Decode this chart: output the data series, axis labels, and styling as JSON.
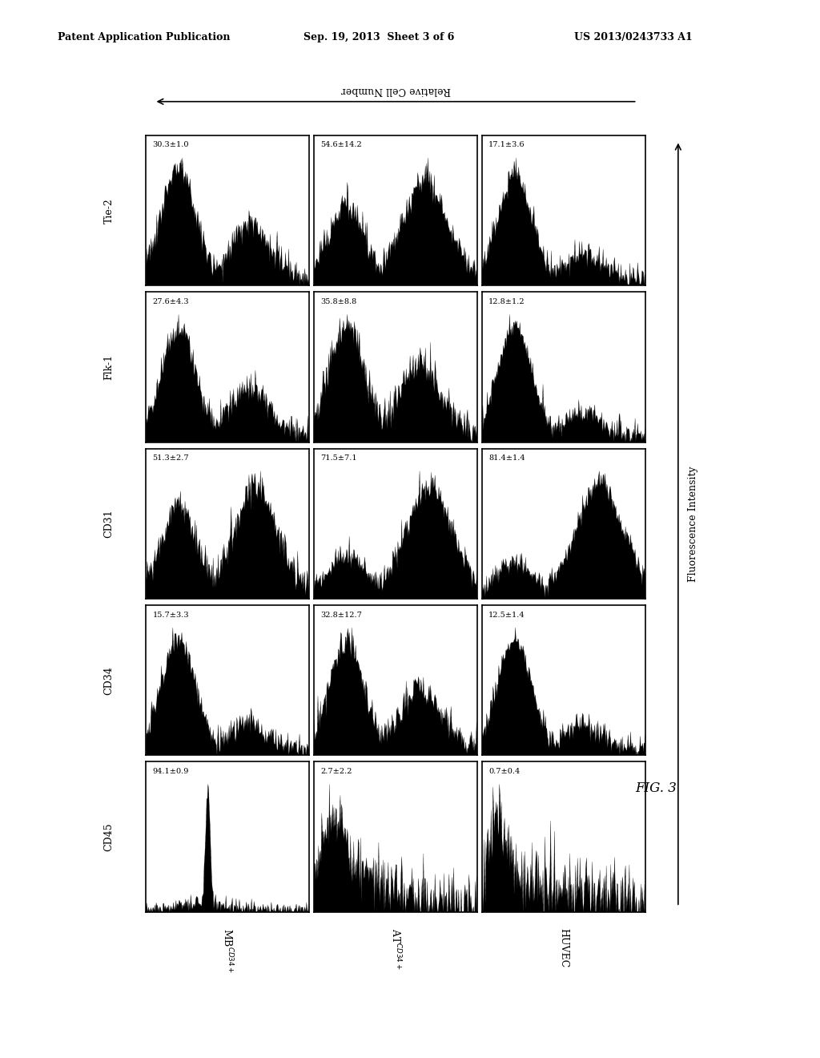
{
  "header_left": "Patent Application Publication",
  "header_mid": "Sep. 19, 2013  Sheet 3 of 6",
  "header_right": "US 2013/0243733 A1",
  "fig_label": "FIG. 3",
  "row_labels_top_to_bottom": [
    "Tie-2",
    "Flk-1",
    "CD31",
    "CD34",
    "CD45"
  ],
  "col_labels": [
    "MB^{CD34+}",
    "AT^{CD34+}",
    "HUVEC"
  ],
  "values": [
    [
      "30.3±1.0",
      "54.6±14.2",
      "17.1±3.6"
    ],
    [
      "27.6±4.3",
      "35.8±8.8",
      "12.8±1.2"
    ],
    [
      "51.3±2.7",
      "71.5±7.1",
      "81.4±1.4"
    ],
    [
      "15.7±3.3",
      "32.8±12.7",
      "12.5±1.4"
    ],
    [
      "94.1±0.9",
      "2.7±2.2",
      "0.7±0.4"
    ]
  ],
  "x_axis_label": "Relative Cell Number",
  "y_axis_label": "Fluorescence Intensity",
  "background_color": "#ffffff"
}
